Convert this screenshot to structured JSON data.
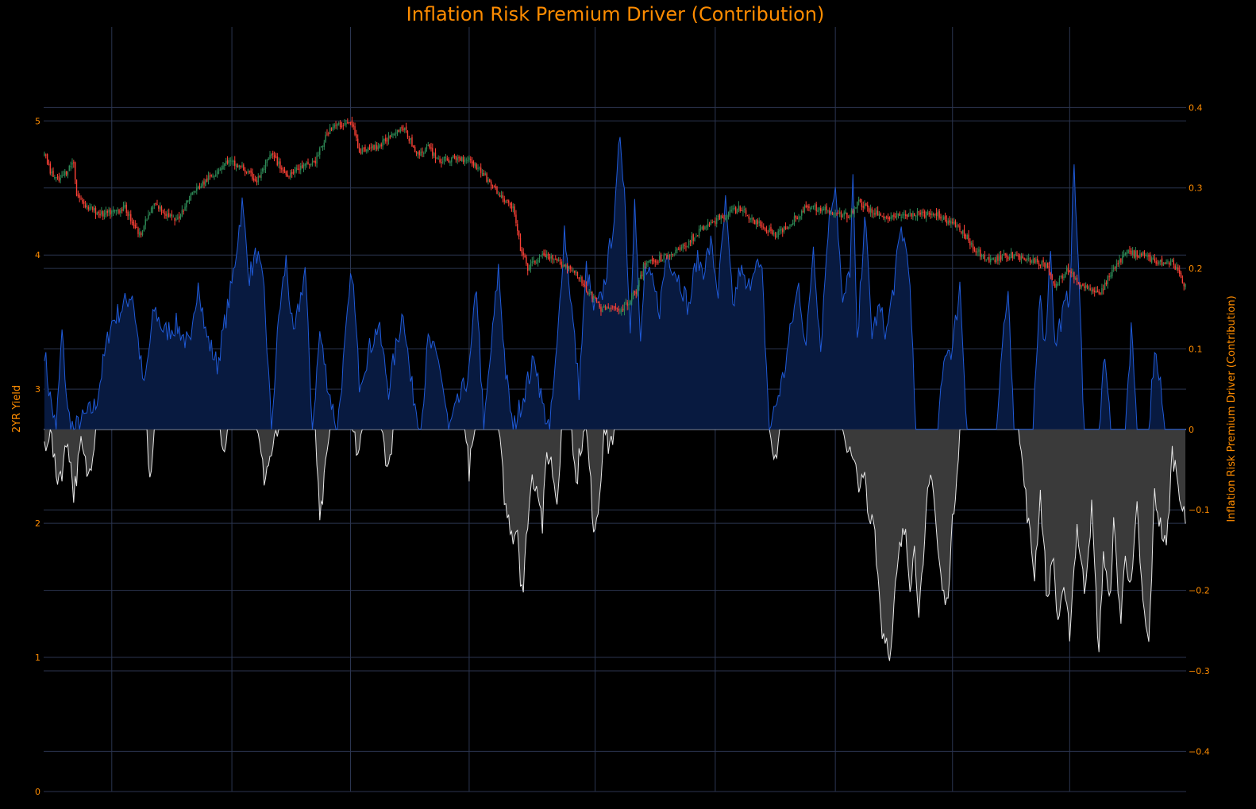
{
  "chart_data": {
    "type": "candlestick+area",
    "title": "Inflation Risk Premium Driver (Contribution)",
    "y_left": {
      "label": "2YR Yield",
      "range": [
        0,
        5.7
      ],
      "ticks": [
        0,
        1,
        2,
        3,
        4,
        5
      ]
    },
    "y_right": {
      "label": "Inflation Risk Premium Driver (Contribution)",
      "range": [
        -0.45,
        0.5
      ],
      "ticks": [
        -0.4,
        -0.3,
        -0.2,
        -0.1,
        0,
        0.1,
        0.2,
        0.3,
        0.4
      ],
      "tick_text": [
        "−0.4",
        "−0.3",
        "−0.2",
        "−0.1",
        "0",
        "0.1",
        "0.2",
        "0.3",
        "0.4"
      ]
    },
    "x": {
      "n_periods": 780,
      "vertical_gridlines_at_period": [
        46,
        128,
        209,
        290,
        376,
        458,
        540,
        620,
        700
      ]
    },
    "grid": true,
    "colors": {
      "up": "#2e8b57",
      "down": "#ff4136",
      "positive_line": "#1f5ad8",
      "positive_fill": "#081a40",
      "negative_line": "#e8e8e8",
      "negative_fill": "#3a3a3a",
      "text": "#ff8c00",
      "grid": "#2b3550",
      "background": "#000000"
    },
    "close_anchors": [
      [
        0,
        4.75
      ],
      [
        5,
        4.6
      ],
      [
        10,
        4.55
      ],
      [
        20,
        4.7
      ],
      [
        22,
        4.45
      ],
      [
        30,
        4.35
      ],
      [
        40,
        4.3
      ],
      [
        55,
        4.35
      ],
      [
        65,
        4.15
      ],
      [
        75,
        4.38
      ],
      [
        90,
        4.25
      ],
      [
        100,
        4.45
      ],
      [
        115,
        4.6
      ],
      [
        125,
        4.7
      ],
      [
        135,
        4.65
      ],
      [
        145,
        4.55
      ],
      [
        155,
        4.75
      ],
      [
        165,
        4.6
      ],
      [
        175,
        4.65
      ],
      [
        185,
        4.7
      ],
      [
        195,
        4.95
      ],
      [
        205,
        4.98
      ],
      [
        210,
        4.98
      ],
      [
        215,
        4.78
      ],
      [
        225,
        4.8
      ],
      [
        230,
        4.82
      ],
      [
        238,
        4.92
      ],
      [
        245,
        4.95
      ],
      [
        255,
        4.75
      ],
      [
        262,
        4.8
      ],
      [
        270,
        4.7
      ],
      [
        280,
        4.72
      ],
      [
        290,
        4.72
      ],
      [
        300,
        4.6
      ],
      [
        310,
        4.45
      ],
      [
        320,
        4.35
      ],
      [
        325,
        4.05
      ],
      [
        330,
        3.9
      ],
      [
        340,
        4.0
      ],
      [
        350,
        3.95
      ],
      [
        360,
        3.9
      ],
      [
        370,
        3.75
      ],
      [
        380,
        3.6
      ],
      [
        395,
        3.6
      ],
      [
        405,
        3.75
      ],
      [
        410,
        3.95
      ],
      [
        420,
        3.97
      ],
      [
        435,
        4.05
      ],
      [
        450,
        4.2
      ],
      [
        465,
        4.3
      ],
      [
        475,
        4.35
      ],
      [
        485,
        4.25
      ],
      [
        500,
        4.15
      ],
      [
        510,
        4.25
      ],
      [
        520,
        4.35
      ],
      [
        530,
        4.35
      ],
      [
        540,
        4.3
      ],
      [
        550,
        4.3
      ],
      [
        555,
        4.4
      ],
      [
        565,
        4.32
      ],
      [
        575,
        4.28
      ],
      [
        590,
        4.3
      ],
      [
        600,
        4.3
      ],
      [
        610,
        4.3
      ],
      [
        625,
        4.2
      ],
      [
        635,
        4.05
      ],
      [
        645,
        3.95
      ],
      [
        660,
        4.0
      ],
      [
        670,
        3.97
      ],
      [
        685,
        3.92
      ],
      [
        690,
        3.75
      ],
      [
        698,
        3.9
      ],
      [
        705,
        3.8
      ],
      [
        715,
        3.75
      ],
      [
        720,
        3.7
      ],
      [
        730,
        3.9
      ],
      [
        740,
        4.02
      ],
      [
        750,
        4.0
      ],
      [
        760,
        3.95
      ],
      [
        770,
        3.95
      ],
      [
        775,
        3.85
      ],
      [
        779,
        3.77
      ]
    ],
    "driver_positive_anchors": [
      [
        0,
        0.1
      ],
      [
        3,
        0.05
      ],
      [
        8,
        0.0
      ],
      [
        12,
        0.12
      ],
      [
        16,
        0.02
      ],
      [
        20,
        0.0
      ],
      [
        35,
        0.03
      ],
      [
        45,
        0.13
      ],
      [
        60,
        0.17
      ],
      [
        68,
        0.05
      ],
      [
        75,
        0.15
      ],
      [
        82,
        0.12
      ],
      [
        90,
        0.13
      ],
      [
        100,
        0.1
      ],
      [
        105,
        0.19
      ],
      [
        110,
        0.12
      ],
      [
        118,
        0.08
      ],
      [
        128,
        0.18
      ],
      [
        135,
        0.28
      ],
      [
        140,
        0.19
      ],
      [
        145,
        0.22
      ],
      [
        150,
        0.17
      ],
      [
        155,
        0.0
      ],
      [
        160,
        0.14
      ],
      [
        165,
        0.21
      ],
      [
        170,
        0.11
      ],
      [
        178,
        0.2
      ],
      [
        183,
        0.0
      ],
      [
        188,
        0.12
      ],
      [
        194,
        0.05
      ],
      [
        200,
        0.0
      ],
      [
        210,
        0.2
      ],
      [
        215,
        0.06
      ],
      [
        222,
        0.1
      ],
      [
        228,
        0.13
      ],
      [
        235,
        0.05
      ],
      [
        245,
        0.15
      ],
      [
        250,
        0.06
      ],
      [
        257,
        0.0
      ],
      [
        262,
        0.11
      ],
      [
        270,
        0.08
      ],
      [
        276,
        0.0
      ],
      [
        290,
        0.07
      ],
      [
        295,
        0.18
      ],
      [
        300,
        0.0
      ],
      [
        305,
        0.1
      ],
      [
        310,
        0.2
      ],
      [
        315,
        0.07
      ],
      [
        320,
        0.0
      ],
      [
        335,
        0.09
      ],
      [
        340,
        0.03
      ],
      [
        345,
        0.0
      ],
      [
        350,
        0.1
      ],
      [
        355,
        0.25
      ],
      [
        360,
        0.15
      ],
      [
        365,
        0.05
      ],
      [
        370,
        0.2
      ],
      [
        375,
        0.15
      ],
      [
        380,
        0.16
      ],
      [
        385,
        0.21
      ],
      [
        390,
        0.28
      ],
      [
        393,
        0.37
      ],
      [
        396,
        0.3
      ],
      [
        400,
        0.12
      ],
      [
        403,
        0.3
      ],
      [
        407,
        0.1
      ],
      [
        410,
        0.2
      ],
      [
        415,
        0.18
      ],
      [
        420,
        0.15
      ],
      [
        425,
        0.22
      ],
      [
        430,
        0.2
      ],
      [
        435,
        0.18
      ],
      [
        440,
        0.15
      ],
      [
        445,
        0.21
      ],
      [
        450,
        0.2
      ],
      [
        455,
        0.23
      ],
      [
        460,
        0.17
      ],
      [
        465,
        0.28
      ],
      [
        470,
        0.15
      ],
      [
        475,
        0.2
      ],
      [
        480,
        0.17
      ],
      [
        485,
        0.21
      ],
      [
        490,
        0.19
      ],
      [
        495,
        0.0
      ],
      [
        505,
        0.07
      ],
      [
        510,
        0.13
      ],
      [
        515,
        0.18
      ],
      [
        520,
        0.1
      ],
      [
        525,
        0.23
      ],
      [
        530,
        0.1
      ],
      [
        535,
        0.25
      ],
      [
        540,
        0.31
      ],
      [
        545,
        0.15
      ],
      [
        550,
        0.2
      ],
      [
        552,
        0.31
      ],
      [
        555,
        0.1
      ],
      [
        560,
        0.27
      ],
      [
        565,
        0.12
      ],
      [
        570,
        0.15
      ],
      [
        575,
        0.12
      ],
      [
        580,
        0.18
      ],
      [
        585,
        0.25
      ],
      [
        590,
        0.21
      ],
      [
        595,
        0.0
      ],
      [
        610,
        0.0
      ],
      [
        615,
        0.1
      ],
      [
        620,
        0.1
      ],
      [
        625,
        0.18
      ],
      [
        630,
        0.0
      ],
      [
        650,
        0.0
      ],
      [
        655,
        0.13
      ],
      [
        658,
        0.16
      ],
      [
        662,
        0.0
      ],
      [
        675,
        0.0
      ],
      [
        680,
        0.18
      ],
      [
        683,
        0.1
      ],
      [
        687,
        0.23
      ],
      [
        690,
        0.1
      ],
      [
        693,
        0.13
      ],
      [
        700,
        0.17
      ],
      [
        703,
        0.33
      ],
      [
        707,
        0.15
      ],
      [
        710,
        0.0
      ],
      [
        720,
        0.0
      ],
      [
        724,
        0.1
      ],
      [
        728,
        0.0
      ],
      [
        738,
        0.0
      ],
      [
        742,
        0.12
      ],
      [
        746,
        0.0
      ],
      [
        754,
        0.0
      ],
      [
        758,
        0.1
      ],
      [
        762,
        0.05
      ],
      [
        765,
        0.0
      ],
      [
        779,
        0.0
      ]
    ],
    "driver_negative_anchors": [
      [
        0,
        -0.02
      ],
      [
        4,
        0.0
      ],
      [
        8,
        -0.06
      ],
      [
        12,
        -0.05
      ],
      [
        16,
        -0.01
      ],
      [
        20,
        -0.08
      ],
      [
        25,
        -0.02
      ],
      [
        30,
        -0.06
      ],
      [
        35,
        0.0
      ],
      [
        70,
        0.0
      ],
      [
        72,
        -0.06
      ],
      [
        75,
        0.0
      ],
      [
        120,
        0.0
      ],
      [
        122,
        -0.03
      ],
      [
        125,
        0.0
      ],
      [
        145,
        0.0
      ],
      [
        150,
        -0.06
      ],
      [
        155,
        -0.03
      ],
      [
        160,
        0.0
      ],
      [
        185,
        0.0
      ],
      [
        188,
        -0.12
      ],
      [
        192,
        -0.05
      ],
      [
        195,
        0.0
      ],
      [
        210,
        0.0
      ],
      [
        214,
        -0.03
      ],
      [
        218,
        0.0
      ],
      [
        230,
        0.0
      ],
      [
        235,
        -0.05
      ],
      [
        238,
        0.0
      ],
      [
        287,
        0.0
      ],
      [
        290,
        -0.05
      ],
      [
        294,
        0.0
      ],
      [
        310,
        0.0
      ],
      [
        315,
        -0.1
      ],
      [
        320,
        -0.13
      ],
      [
        323,
        -0.12
      ],
      [
        325,
        -0.18
      ],
      [
        327,
        -0.2
      ],
      [
        330,
        -0.11
      ],
      [
        333,
        -0.06
      ],
      [
        337,
        -0.07
      ],
      [
        340,
        -0.12
      ],
      [
        343,
        -0.03
      ],
      [
        346,
        -0.04
      ],
      [
        350,
        -0.09
      ],
      [
        353,
        0.0
      ],
      [
        360,
        0.0
      ],
      [
        363,
        -0.07
      ],
      [
        366,
        -0.02
      ],
      [
        370,
        0.0
      ],
      [
        375,
        -0.12
      ],
      [
        378,
        -0.1
      ],
      [
        382,
        0.0
      ],
      [
        385,
        -0.02
      ],
      [
        390,
        0.0
      ],
      [
        495,
        0.0
      ],
      [
        498,
        -0.05
      ],
      [
        502,
        0.0
      ],
      [
        545,
        0.0
      ],
      [
        550,
        -0.03
      ],
      [
        555,
        -0.06
      ],
      [
        558,
        -0.07
      ],
      [
        560,
        -0.06
      ],
      [
        563,
        -0.12
      ],
      [
        566,
        -0.1
      ],
      [
        569,
        -0.18
      ],
      [
        572,
        -0.25
      ],
      [
        575,
        -0.26
      ],
      [
        578,
        -0.28
      ],
      [
        581,
        -0.2
      ],
      [
        584,
        -0.15
      ],
      [
        588,
        -0.12
      ],
      [
        591,
        -0.19
      ],
      [
        594,
        -0.15
      ],
      [
        597,
        -0.22
      ],
      [
        600,
        -0.18
      ],
      [
        603,
        -0.08
      ],
      [
        606,
        -0.05
      ],
      [
        610,
        -0.15
      ],
      [
        613,
        -0.2
      ],
      [
        616,
        -0.22
      ],
      [
        620,
        -0.12
      ],
      [
        625,
        0.0
      ],
      [
        665,
        0.0
      ],
      [
        668,
        -0.05
      ],
      [
        672,
        -0.12
      ],
      [
        676,
        -0.18
      ],
      [
        680,
        -0.08
      ],
      [
        685,
        -0.22
      ],
      [
        688,
        -0.15
      ],
      [
        692,
        -0.24
      ],
      [
        695,
        -0.2
      ],
      [
        700,
        -0.25
      ],
      [
        705,
        -0.12
      ],
      [
        710,
        -0.2
      ],
      [
        715,
        -0.1
      ],
      [
        720,
        -0.28
      ],
      [
        723,
        -0.15
      ],
      [
        727,
        -0.22
      ],
      [
        730,
        -0.12
      ],
      [
        735,
        -0.24
      ],
      [
        738,
        -0.15
      ],
      [
        742,
        -0.2
      ],
      [
        746,
        -0.1
      ],
      [
        750,
        -0.22
      ],
      [
        754,
        -0.27
      ],
      [
        758,
        -0.08
      ],
      [
        762,
        -0.12
      ],
      [
        766,
        -0.15
      ],
      [
        770,
        -0.03
      ],
      [
        774,
        -0.06
      ],
      [
        777,
        -0.1
      ],
      [
        779,
        -0.12
      ]
    ]
  }
}
